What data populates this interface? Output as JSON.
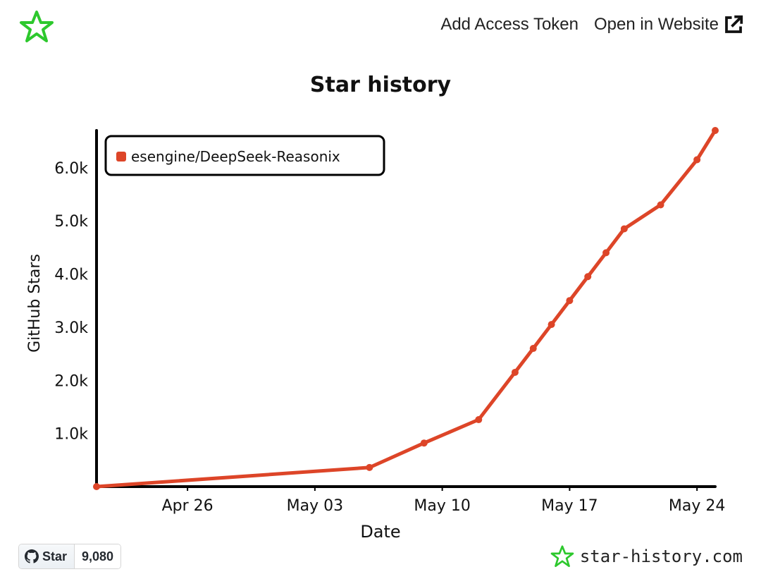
{
  "header": {
    "add_token_label": "Add Access Token",
    "open_website_label": "Open in Website",
    "logo_icon": "star-history-logo-icon",
    "external_icon": "external-link-icon"
  },
  "chart_data": {
    "type": "line",
    "title": "Star history",
    "xlabel": "Date",
    "ylabel": "GitHub Stars",
    "x_ticks": [
      "Apr 26",
      "May 03",
      "May 10",
      "May 17",
      "May 24"
    ],
    "y_ticks": [
      "1.0k",
      "2.0k",
      "3.0k",
      "4.0k",
      "5.0k",
      "6.0k"
    ],
    "ylim": [
      0,
      6700
    ],
    "xlim": [
      "2025-04-21",
      "2025-05-25"
    ],
    "grid": false,
    "legend_position": "top-left",
    "series": [
      {
        "name": "esengine/DeepSeek-Reasonix",
        "color": "#dd4528",
        "points": [
          {
            "x": "2025-04-21",
            "y": 0
          },
          {
            "x": "2025-05-06",
            "y": 360
          },
          {
            "x": "2025-05-09",
            "y": 820
          },
          {
            "x": "2025-05-12",
            "y": 1260
          },
          {
            "x": "2025-05-14",
            "y": 2150
          },
          {
            "x": "2025-05-15",
            "y": 2600
          },
          {
            "x": "2025-05-16",
            "y": 3050
          },
          {
            "x": "2025-05-17",
            "y": 3500
          },
          {
            "x": "2025-05-18",
            "y": 3950
          },
          {
            "x": "2025-05-19",
            "y": 4400
          },
          {
            "x": "2025-05-20",
            "y": 4850
          },
          {
            "x": "2025-05-22",
            "y": 5300
          },
          {
            "x": "2025-05-24",
            "y": 6150
          },
          {
            "x": "2025-05-25",
            "y": 6700
          }
        ]
      }
    ]
  },
  "footer": {
    "star_label": "Star",
    "star_count": "9,080",
    "github_icon": "github-icon",
    "brand_text": "star-history.com",
    "brand_icon": "star-history-logo-icon"
  }
}
